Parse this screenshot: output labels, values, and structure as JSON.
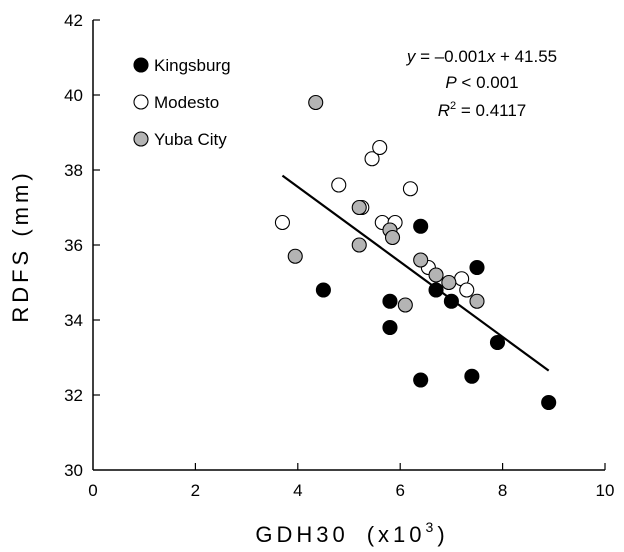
{
  "chart_data": {
    "type": "scatter",
    "xlabel": "GDH30",
    "xlabel_unit_prefix": "(x10",
    "xlabel_unit_exp": "3",
    "xlabel_unit_suffix": ")",
    "ylabel": "RDFS (mm)",
    "xlim": [
      0,
      10
    ],
    "ylim": [
      30,
      42
    ],
    "xticks": [
      "0",
      "2",
      "4",
      "6",
      "8",
      "10"
    ],
    "yticks": [
      "30",
      "32",
      "34",
      "36",
      "38",
      "40",
      "42"
    ],
    "grid": false,
    "legend_position": "top-left",
    "series": [
      {
        "name": "Kingsburg",
        "fill": "#000000",
        "points": [
          [
            4.5,
            34.8
          ],
          [
            5.8,
            34.5
          ],
          [
            5.8,
            33.8
          ],
          [
            6.4,
            36.5
          ],
          [
            6.4,
            32.4
          ],
          [
            6.7,
            34.8
          ],
          [
            7.0,
            34.5
          ],
          [
            7.4,
            32.5
          ],
          [
            7.5,
            35.4
          ],
          [
            7.9,
            33.4
          ],
          [
            8.9,
            31.8
          ]
        ]
      },
      {
        "name": "Modesto",
        "fill": "#ffffff",
        "points": [
          [
            3.7,
            36.6
          ],
          [
            4.8,
            37.6
          ],
          [
            5.25,
            37.0
          ],
          [
            5.45,
            38.3
          ],
          [
            5.6,
            38.6
          ],
          [
            5.65,
            36.6
          ],
          [
            5.9,
            36.6
          ],
          [
            6.2,
            37.5
          ],
          [
            6.55,
            35.4
          ],
          [
            7.2,
            35.1
          ],
          [
            7.3,
            34.8
          ]
        ]
      },
      {
        "name": "Yuba City",
        "fill": "#b4b4b4",
        "points": [
          [
            4.35,
            39.8
          ],
          [
            3.95,
            35.7
          ],
          [
            5.2,
            37.0
          ],
          [
            5.2,
            36.0
          ],
          [
            5.8,
            36.4
          ],
          [
            5.85,
            36.2
          ],
          [
            6.1,
            34.4
          ],
          [
            6.4,
            35.6
          ],
          [
            6.7,
            35.2
          ],
          [
            6.95,
            35.0
          ],
          [
            7.5,
            34.5
          ]
        ]
      }
    ],
    "regression": {
      "x_range": [
        3.7,
        8.9
      ],
      "slope_per_x": -0.001,
      "intercept": 41.55,
      "equation": {
        "y_var": "y",
        "eq_part": " = –0.001",
        "x_var": "x",
        "rest": " + 41.55"
      },
      "p_value": {
        "var": "P",
        "rest": " < 0.001"
      },
      "r_squared": {
        "var": "R",
        "exp": "2",
        "rest": " = 0.4117"
      }
    }
  }
}
